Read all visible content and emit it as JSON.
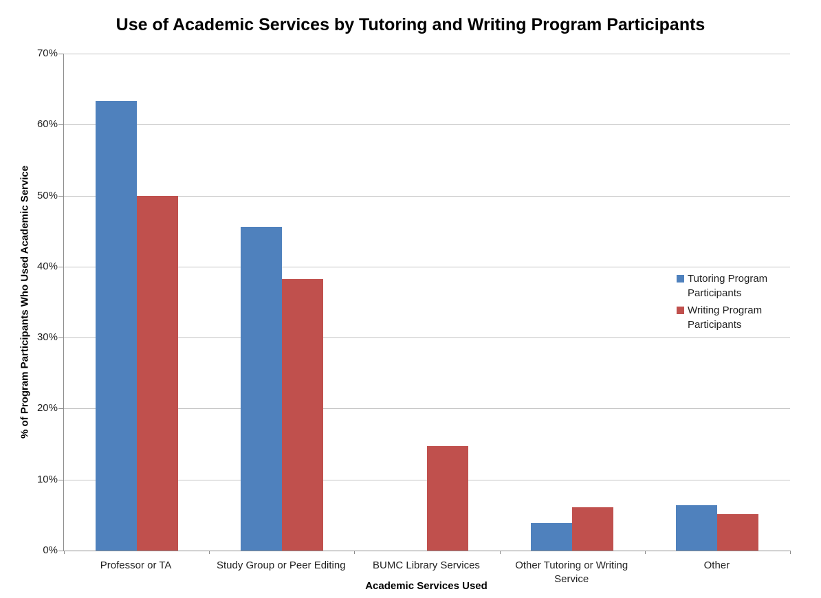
{
  "chart_data": {
    "type": "bar",
    "title": "Use of Academic Services by Tutoring and Writing Program Participants",
    "xlabel": "Academic Services Used",
    "ylabel": "% of Program Participants Who Used Academic Service",
    "categories": [
      "Professor or TA",
      "Study Group or Peer Editing",
      "BUMC Library Services",
      "Other Tutoring or Writing Service",
      "Other"
    ],
    "series": [
      {
        "name": "Tutoring Program Participants",
        "color": "#4F81BD",
        "values": [
          63.3,
          45.6,
          0,
          3.9,
          6.4
        ]
      },
      {
        "name": "Writing Program Participants",
        "color": "#C0504D",
        "values": [
          50.0,
          38.2,
          14.7,
          6.1,
          5.1
        ]
      }
    ],
    "ylim": [
      0,
      70
    ],
    "ytick_step": 10,
    "ytick_labels": [
      "0%",
      "10%",
      "20%",
      "30%",
      "40%",
      "50%",
      "60%",
      "70%"
    ],
    "grid": true,
    "legend_position": "right-middle",
    "colors": {
      "gridline": "#c3c3c3",
      "axis_line": "#8c8c8c",
      "tick_text": "#1f1f1f",
      "title_text": "#000000",
      "background": "#ffffff"
    }
  }
}
